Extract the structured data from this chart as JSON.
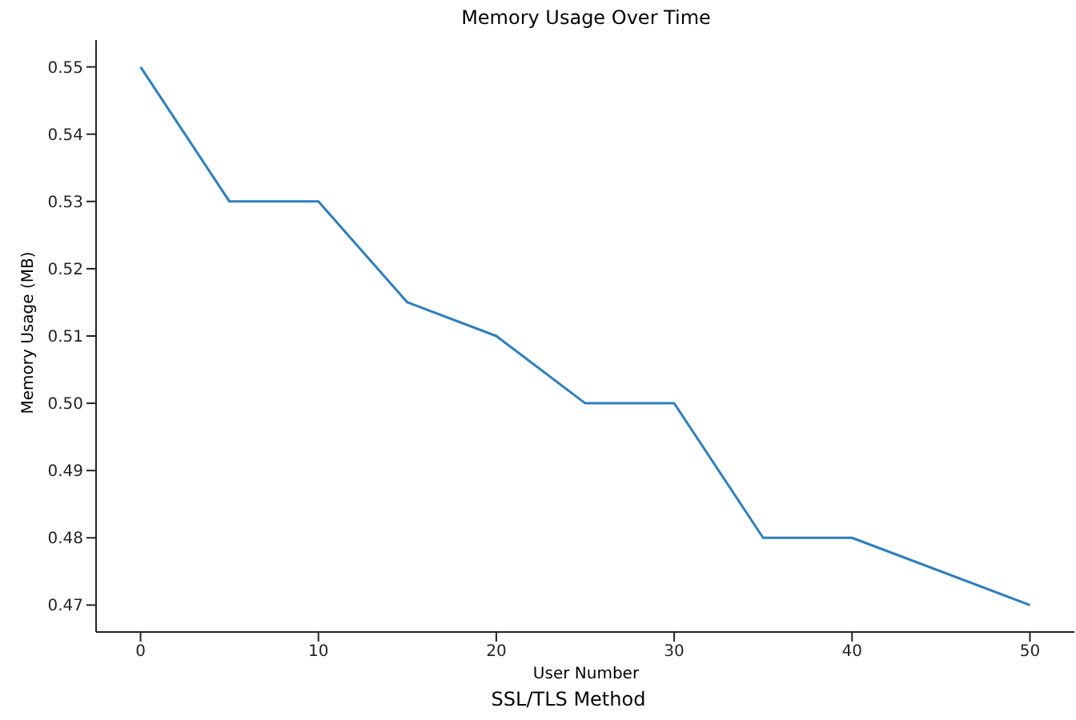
{
  "chart_data": {
    "type": "line",
    "title": "Memory Usage Over Time",
    "xlabel": "User Number",
    "ylabel": "Memory Usage (MB)",
    "annotations": [
      "SSL/TLS Method"
    ],
    "x": [
      0,
      5,
      10,
      15,
      20,
      25,
      30,
      35,
      40,
      50
    ],
    "series": [
      {
        "color": "#2e7ebc",
        "values": [
          0.55,
          0.53,
          0.53,
          0.515,
          0.51,
          0.5,
          0.5,
          0.48,
          0.48,
          0.47
        ]
      }
    ],
    "xlim": [
      -2.5,
      52.5
    ],
    "xticks": [
      0,
      10,
      20,
      30,
      40,
      50
    ],
    "ylim": [
      0.466,
      0.554
    ],
    "yticks": [
      {
        "value": 0.47,
        "label": "0.47"
      },
      {
        "value": 0.48,
        "label": "0.48"
      },
      {
        "value": 0.49,
        "label": "0.49"
      },
      {
        "value": 0.5,
        "label": "0.50"
      },
      {
        "value": 0.51,
        "label": "0.51"
      },
      {
        "value": 0.52,
        "label": "0.52"
      },
      {
        "value": 0.53,
        "label": "0.53"
      },
      {
        "value": 0.54,
        "label": "0.54"
      },
      {
        "value": 0.55,
        "label": "0.55"
      }
    ],
    "grid": false,
    "legend": false,
    "marker": "none",
    "line_style": "solid"
  }
}
